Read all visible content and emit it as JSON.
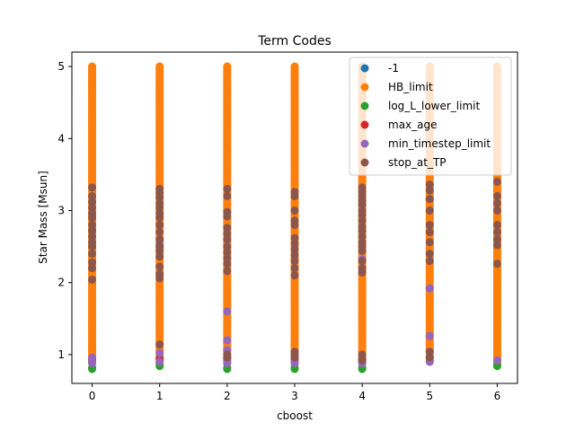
{
  "chart_data": {
    "type": "scatter",
    "title": "Term Codes",
    "xlabel": "cboost",
    "ylabel": "Star Mass [Msun]",
    "xlim": [
      -0.3,
      6.3
    ],
    "ylim": [
      0.6,
      5.2
    ],
    "x_ticks": [
      0,
      1,
      2,
      3,
      4,
      5,
      6
    ],
    "y_ticks": [
      1,
      2,
      3,
      4,
      5
    ],
    "grid": false,
    "legend_position": "upper-right",
    "cboost_values": [
      0,
      1,
      2,
      3,
      4,
      5,
      6
    ],
    "mass_grid": {
      "start": 0.8,
      "stop": 5.0,
      "step": 0.02
    },
    "series": [
      {
        "name": "-1",
        "color": "#1f77b4",
        "points": [
          [
            4,
            1.56
          ]
        ]
      },
      {
        "name": "HB_limit",
        "color": "#ff7f0e",
        "description_range": [
          0.88,
          5.0
        ],
        "ranges": [
          [
            0,
            0.88,
            5.0
          ],
          [
            1,
            0.88,
            5.0
          ],
          [
            2,
            0.88,
            5.0
          ],
          [
            3,
            0.88,
            5.0
          ],
          [
            4,
            0.88,
            5.0
          ],
          [
            5,
            0.9,
            5.0
          ],
          [
            6,
            0.9,
            5.0
          ]
        ]
      },
      {
        "name": "log_L_lower_limit",
        "color": "#2ca02c",
        "points": [
          [
            0,
            0.8
          ],
          [
            0,
            0.82
          ],
          [
            1,
            0.84
          ],
          [
            1,
            0.86
          ],
          [
            2,
            0.8
          ],
          [
            2,
            0.82
          ],
          [
            3,
            0.8
          ],
          [
            3,
            0.82
          ],
          [
            4,
            0.8
          ],
          [
            4,
            0.82
          ],
          [
            6,
            0.84
          ],
          [
            6,
            0.86
          ]
        ]
      },
      {
        "name": "max_age",
        "color": "#d62728",
        "points": [
          [
            0,
            0.94
          ],
          [
            1,
            0.94
          ],
          [
            2,
            0.94
          ],
          [
            3,
            0.94
          ],
          [
            4,
            0.94
          ]
        ]
      },
      {
        "name": "min_timestep_limit",
        "color": "#9467bd",
        "points": [
          [
            0,
            0.88
          ],
          [
            0,
            0.9
          ],
          [
            0,
            0.96
          ],
          [
            1,
            0.9
          ],
          [
            1,
            1.02
          ],
          [
            1,
            2.54
          ],
          [
            2,
            0.88
          ],
          [
            2,
            0.92
          ],
          [
            2,
            1.06
          ],
          [
            2,
            1.2
          ],
          [
            2,
            1.6
          ],
          [
            3,
            0.88
          ],
          [
            3,
            0.92
          ],
          [
            4,
            0.88
          ],
          [
            4,
            0.9
          ],
          [
            4,
            2.32
          ],
          [
            5,
            0.9
          ],
          [
            5,
            1.26
          ],
          [
            5,
            1.92
          ],
          [
            6,
            0.92
          ]
        ]
      },
      {
        "name": "stop_at_TP",
        "color": "#8c564b",
        "points": [
          [
            0,
            2.04
          ],
          [
            0,
            2.2
          ],
          [
            0,
            2.28
          ],
          [
            0,
            2.4
          ],
          [
            0,
            2.5
          ],
          [
            0,
            2.56
          ],
          [
            0,
            2.64
          ],
          [
            0,
            2.72
          ],
          [
            0,
            2.8
          ],
          [
            0,
            2.9
          ],
          [
            0,
            2.96
          ],
          [
            0,
            3.04
          ],
          [
            0,
            3.12
          ],
          [
            0,
            3.2
          ],
          [
            0,
            3.32
          ],
          [
            1,
            1.14
          ],
          [
            1,
            2.06
          ],
          [
            1,
            2.12
          ],
          [
            1,
            2.22
          ],
          [
            1,
            2.36
          ],
          [
            1,
            2.44
          ],
          [
            1,
            2.5
          ],
          [
            1,
            2.6
          ],
          [
            1,
            2.7
          ],
          [
            1,
            2.8
          ],
          [
            1,
            2.9
          ],
          [
            1,
            2.96
          ],
          [
            1,
            3.04
          ],
          [
            1,
            3.1
          ],
          [
            1,
            3.18
          ],
          [
            1,
            3.24
          ],
          [
            1,
            3.3
          ],
          [
            2,
            0.96
          ],
          [
            2,
            1.0
          ],
          [
            2,
            2.16
          ],
          [
            2,
            2.26
          ],
          [
            2,
            2.34
          ],
          [
            2,
            2.42
          ],
          [
            2,
            2.5
          ],
          [
            2,
            2.6
          ],
          [
            2,
            2.68
          ],
          [
            2,
            2.76
          ],
          [
            2,
            2.92
          ],
          [
            2,
            2.98
          ],
          [
            2,
            3.2
          ],
          [
            2,
            3.3
          ],
          [
            3,
            0.96
          ],
          [
            3,
            1.0
          ],
          [
            3,
            1.04
          ],
          [
            3,
            2.1
          ],
          [
            3,
            2.2
          ],
          [
            3,
            2.3
          ],
          [
            3,
            2.38
          ],
          [
            3,
            2.46
          ],
          [
            3,
            2.54
          ],
          [
            3,
            2.62
          ],
          [
            3,
            2.8
          ],
          [
            3,
            2.86
          ],
          [
            3,
            3.0
          ],
          [
            3,
            3.2
          ],
          [
            3,
            3.26
          ],
          [
            4,
            0.92
          ],
          [
            4,
            1.0
          ],
          [
            4,
            2.14
          ],
          [
            4,
            2.2
          ],
          [
            4,
            2.3
          ],
          [
            4,
            2.44
          ],
          [
            4,
            2.5
          ],
          [
            4,
            2.56
          ],
          [
            4,
            2.64
          ],
          [
            4,
            2.72
          ],
          [
            4,
            2.78
          ],
          [
            4,
            2.86
          ],
          [
            4,
            2.94
          ],
          [
            4,
            3.0
          ],
          [
            4,
            3.08
          ],
          [
            4,
            3.14
          ],
          [
            4,
            3.2
          ],
          [
            4,
            3.26
          ],
          [
            4,
            3.32
          ],
          [
            5,
            0.96
          ],
          [
            5,
            1.04
          ],
          [
            5,
            2.3
          ],
          [
            5,
            2.4
          ],
          [
            5,
            2.56
          ],
          [
            5,
            2.7
          ],
          [
            5,
            2.8
          ],
          [
            5,
            3.0
          ],
          [
            5,
            3.16
          ],
          [
            5,
            3.28
          ],
          [
            5,
            3.36
          ],
          [
            6,
            2.26
          ],
          [
            6,
            2.52
          ],
          [
            6,
            2.6
          ],
          [
            6,
            2.7
          ],
          [
            6,
            2.8
          ],
          [
            6,
            3.0
          ],
          [
            6,
            3.1
          ],
          [
            6,
            3.2
          ],
          [
            6,
            3.4
          ]
        ]
      }
    ]
  }
}
